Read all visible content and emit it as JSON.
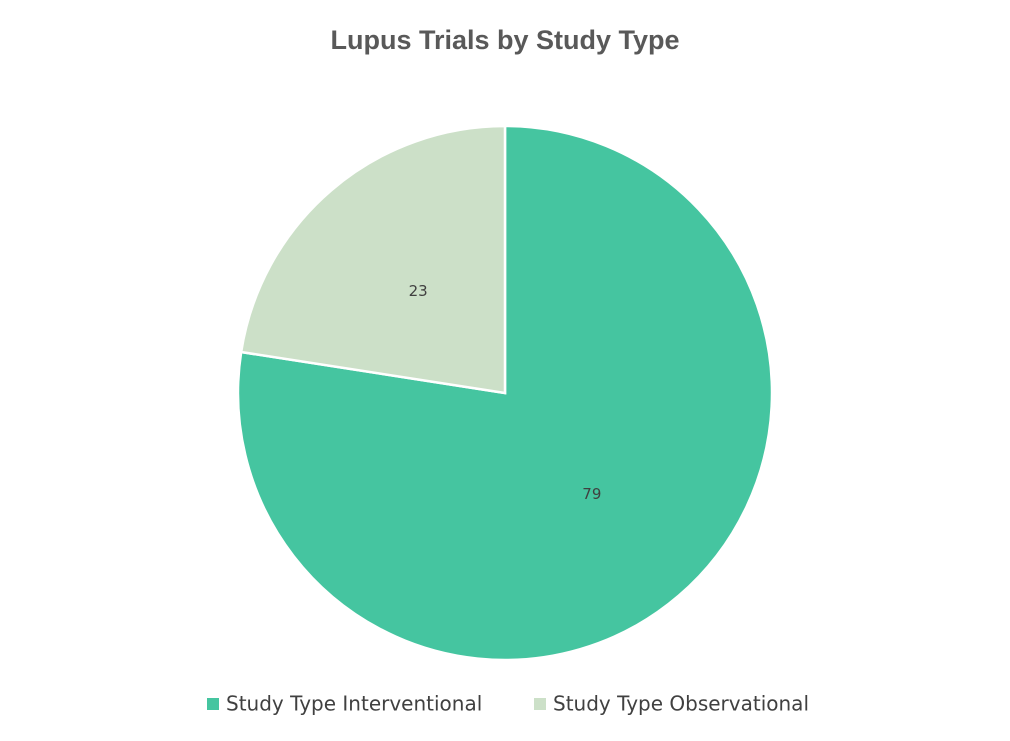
{
  "chart_data": {
    "type": "pie",
    "title": "Lupus Trials by Study Type",
    "categories": [
      "Study Type Interventional",
      "Study Type Observational"
    ],
    "values": [
      79,
      23
    ],
    "colors": [
      "#45c5a0",
      "#cce0c8"
    ],
    "legend": "bottom"
  }
}
